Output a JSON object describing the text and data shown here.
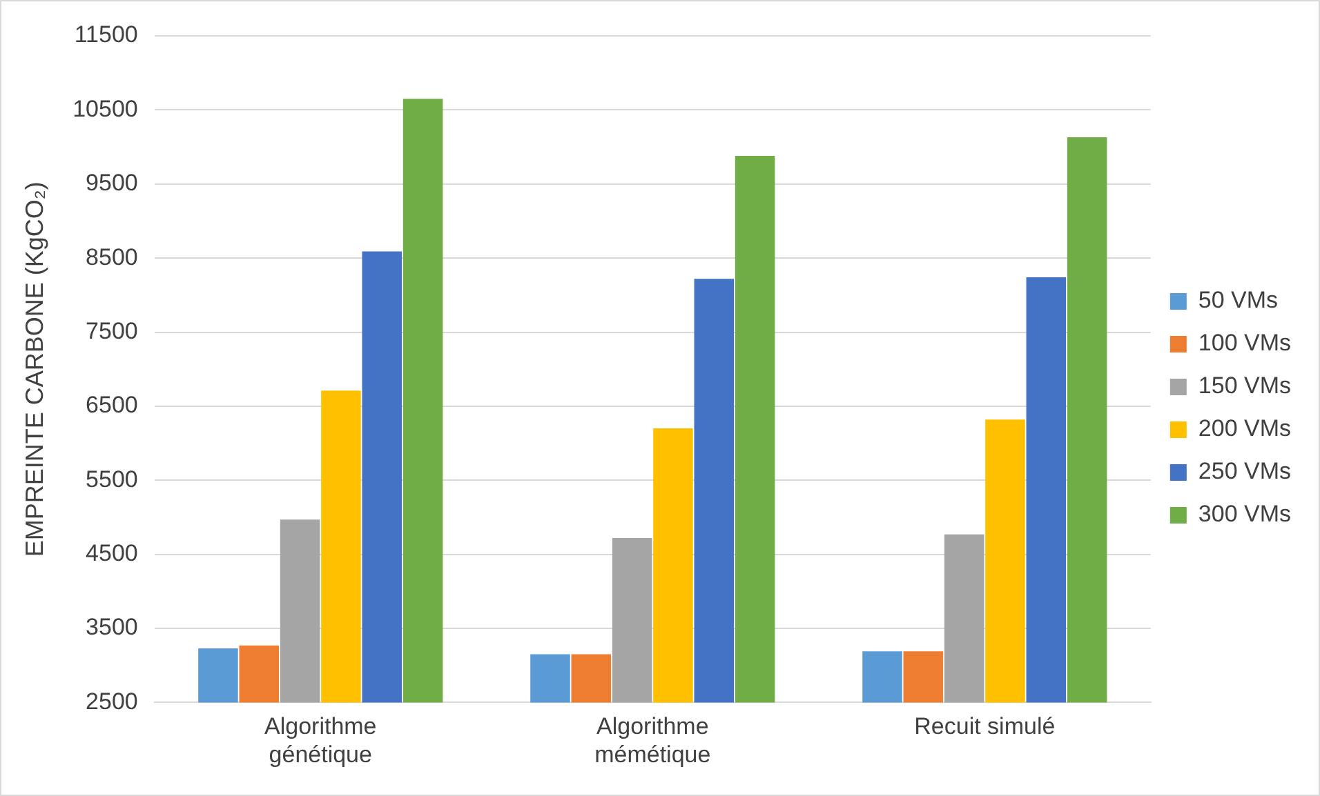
{
  "chart_data": {
    "type": "bar",
    "ylabel": "EMPREINTE CARBONE (KgCO₂)",
    "categories": [
      "Algorithme génétique",
      "Algorithme mémétique",
      "Recuit simulé"
    ],
    "series": [
      {
        "name": "50 VMs",
        "color": "#5b9bd5",
        "values": [
          3230,
          3150,
          3190
        ]
      },
      {
        "name": "100 VMs",
        "color": "#ed7d31",
        "values": [
          3270,
          3150,
          3190
        ]
      },
      {
        "name": "150 VMs",
        "color": "#a5a5a5",
        "values": [
          4970,
          4720,
          4770
        ]
      },
      {
        "name": "200 VMs",
        "color": "#ffc000",
        "values": [
          6710,
          6200,
          6320
        ]
      },
      {
        "name": "250 VMs",
        "color": "#4472c4",
        "values": [
          8590,
          8220,
          8240
        ]
      },
      {
        "name": "300 VMs",
        "color": "#70ad47",
        "values": [
          10650,
          9880,
          10130
        ]
      }
    ],
    "ylim": [
      2500,
      11500
    ],
    "yticks": [
      2500,
      3500,
      4500,
      5500,
      6500,
      7500,
      8500,
      9500,
      10500,
      11500
    ],
    "grid": "y",
    "legend": "right"
  }
}
